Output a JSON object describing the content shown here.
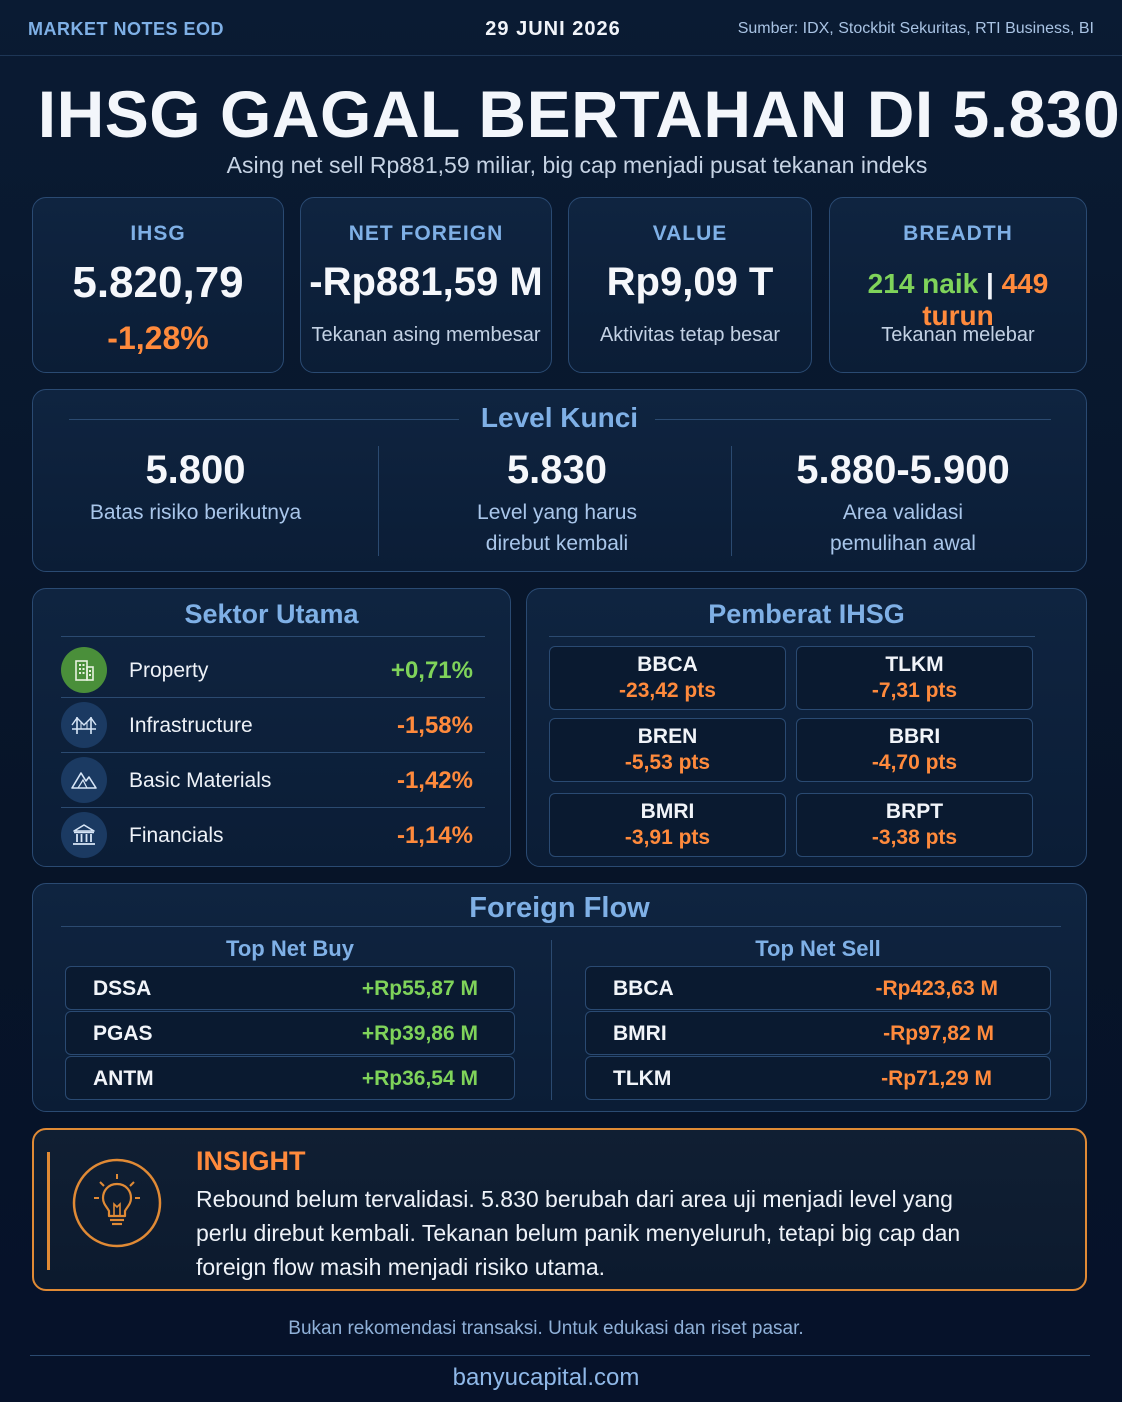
{
  "header": {
    "brand": "MARKET NOTES EOD",
    "date": "29 JUNI 2026",
    "source": "Sumber: IDX, Stockbit Sekuritas, RTI Business, BI"
  },
  "title": "IHSG GAGAL BERTAHAN DI 5.830",
  "subtitle": "Asing net sell Rp881,59 miliar, big cap menjadi pusat tekanan indeks",
  "kpis": {
    "ihsg": {
      "label": "IHSG",
      "value": "5.820,79",
      "change": "-1,28%"
    },
    "net_foreign": {
      "label": "NET FOREIGN",
      "value": "-Rp881,59 M",
      "note": "Tekanan asing membesar"
    },
    "value": {
      "label": "VALUE",
      "value": "Rp9,09 T",
      "note": "Aktivitas tetap besar"
    },
    "breadth": {
      "label": "BREADTH",
      "up": "214 naik",
      "sep": "|",
      "down": "449 turun",
      "note": "Tekanan melebar"
    }
  },
  "level_kunci": {
    "title": "Level Kunci",
    "levels": [
      {
        "value": "5.800",
        "line1": "Batas risiko berikutnya",
        "line2": ""
      },
      {
        "value": "5.830",
        "line1": "Level yang harus",
        "line2": "direbut kembali"
      },
      {
        "value": "5.880-5.900",
        "line1": "Area validasi",
        "line2": "pemulihan awal"
      }
    ]
  },
  "sektor": {
    "title": "Sektor Utama",
    "items": [
      {
        "name": "Property",
        "change": "+0,71%",
        "icon": "building-icon"
      },
      {
        "name": "Infrastructure",
        "change": "-1,58%",
        "icon": "bridge-icon"
      },
      {
        "name": "Basic Materials",
        "change": "-1,42%",
        "icon": "mountain-icon"
      },
      {
        "name": "Financials",
        "change": "-1,14%",
        "icon": "bank-icon"
      }
    ]
  },
  "pemberat": {
    "title": "Pemberat IHSG",
    "items": [
      {
        "ticker": "BBCA",
        "pts": "-23,42 pts"
      },
      {
        "ticker": "TLKM",
        "pts": "-7,31 pts"
      },
      {
        "ticker": "BREN",
        "pts": "-5,53 pts"
      },
      {
        "ticker": "BBRI",
        "pts": "-4,70 pts"
      },
      {
        "ticker": "BMRI",
        "pts": "-3,91 pts"
      },
      {
        "ticker": "BRPT",
        "pts": "-3,38 pts"
      }
    ]
  },
  "foreign_flow": {
    "title": "Foreign Flow",
    "buy_title": "Top Net Buy",
    "sell_title": "Top Net Sell",
    "buy": [
      {
        "ticker": "DSSA",
        "amount": "+Rp55,87 M"
      },
      {
        "ticker": "PGAS",
        "amount": "+Rp39,86 M"
      },
      {
        "ticker": "ANTM",
        "amount": "+Rp36,54 M"
      }
    ],
    "sell": [
      {
        "ticker": "BBCA",
        "amount": "-Rp423,63 M"
      },
      {
        "ticker": "BMRI",
        "amount": "-Rp97,82 M"
      },
      {
        "ticker": "TLKM",
        "amount": "-Rp71,29 M"
      }
    ]
  },
  "insight": {
    "title": "INSIGHT",
    "line1": "Rebound belum tervalidasi. 5.830 berubah dari area uji menjadi level yang",
    "line2": "perlu direbut kembali. Tekanan belum panik menyeluruh, tetapi big cap dan",
    "line3": "foreign flow masih menjadi risiko utama."
  },
  "footer": {
    "disclaimer": "Bukan rekomendasi transaksi. Untuk edukasi dan riset pasar.",
    "site": "banyucapital.com"
  },
  "colors": {
    "accent": "#7fb0e6",
    "negative": "#ff8a3c",
    "positive": "#7fd35a",
    "insight_border": "#e08a35"
  }
}
